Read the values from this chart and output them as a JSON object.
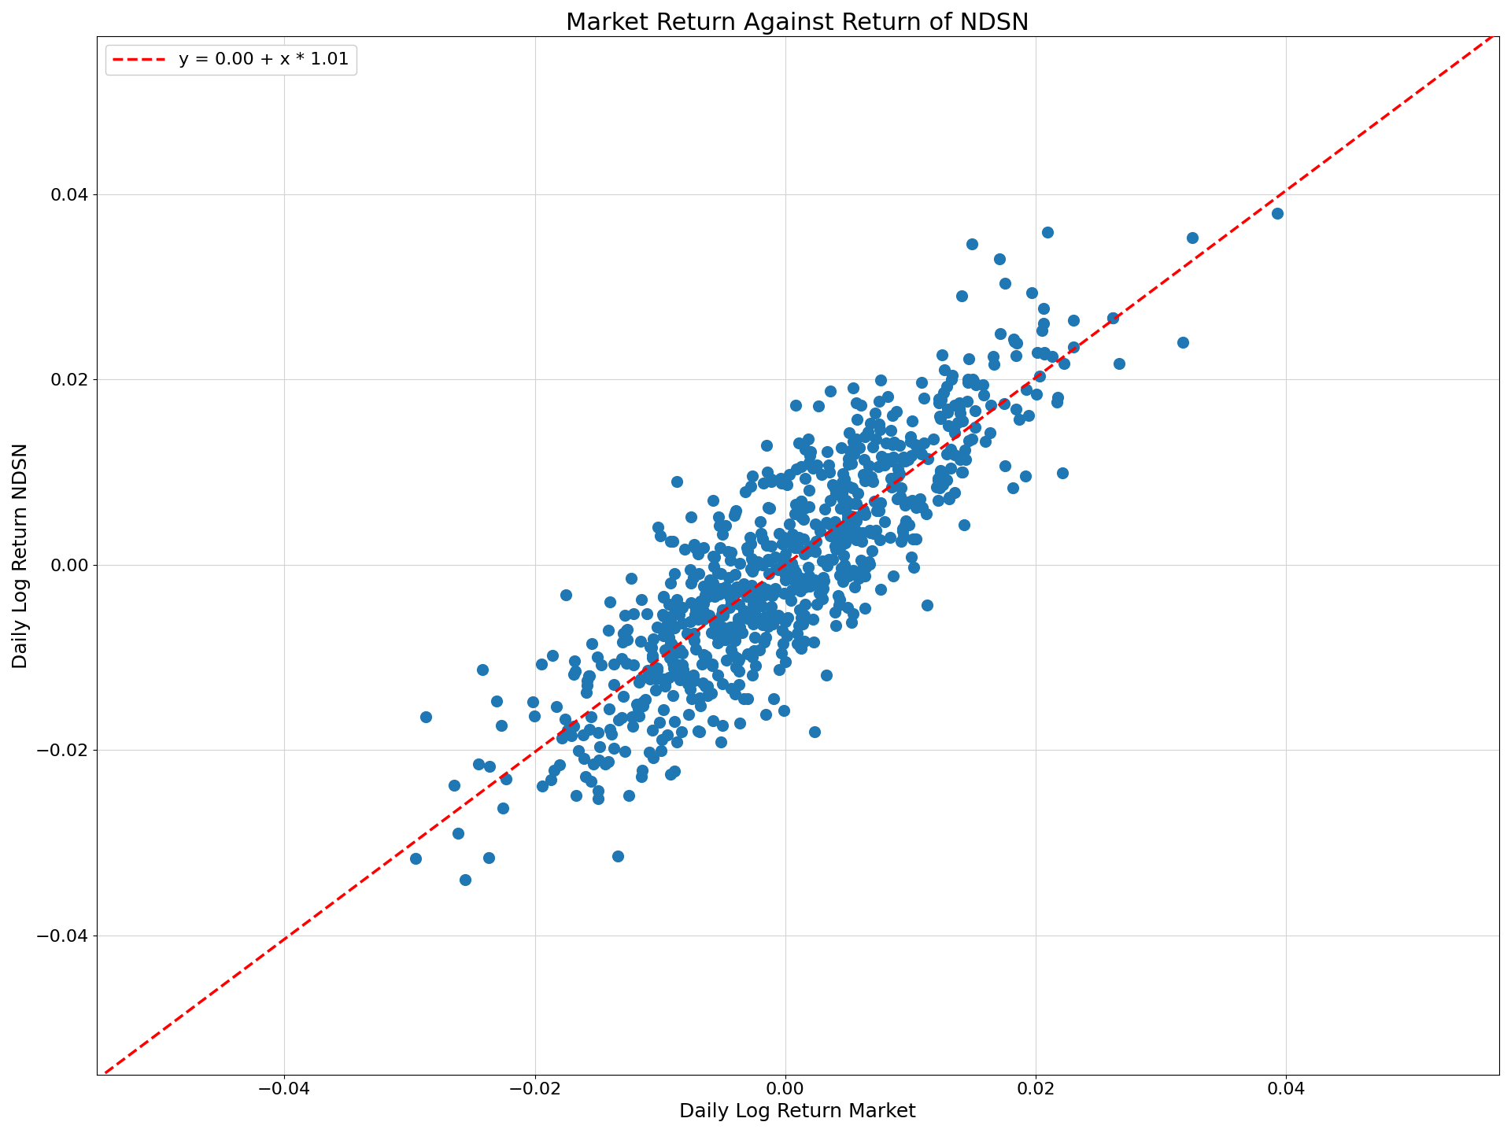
{
  "title": "Market Return Against Return of NDSN",
  "xlabel": "Daily Log Return Market",
  "ylabel": "Daily Log Return NDSN",
  "legend_label": "y = 0.00 + x * 1.01",
  "intercept": 0.0,
  "slope": 1.01,
  "scatter_color": "#1f77b4",
  "line_color": "red",
  "line_style": "--",
  "xlim": [
    -0.055,
    0.057
  ],
  "ylim": [
    -0.055,
    0.057
  ],
  "xticks": [
    -0.04,
    -0.02,
    0.0,
    0.02,
    0.04
  ],
  "yticks": [
    -0.04,
    -0.02,
    0.0,
    0.02,
    0.04
  ],
  "title_fontsize": 22,
  "label_fontsize": 18,
  "tick_fontsize": 16,
  "legend_fontsize": 16,
  "marker_size": 120,
  "alpha": 1.0,
  "n_points": 800,
  "seed": 12345,
  "market_std": 0.01,
  "noise_std": 0.006,
  "figsize": [
    19.2,
    14.4
  ],
  "dpi": 100
}
